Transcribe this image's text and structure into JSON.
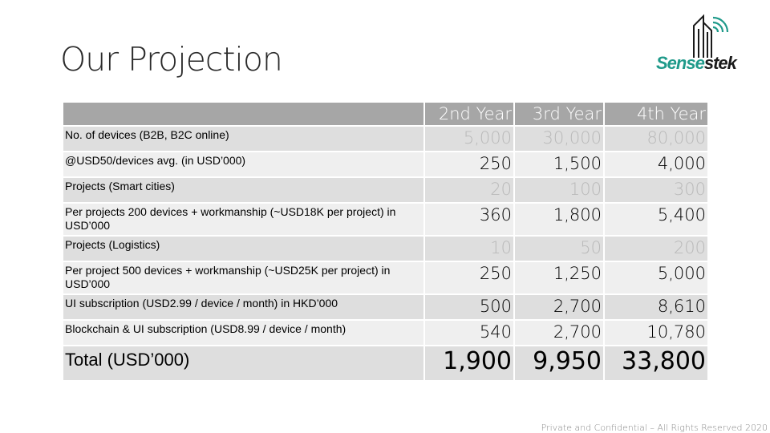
{
  "title": "Our Projection",
  "logo": {
    "part1": "Sense",
    "part2": "stek"
  },
  "table": {
    "headers": [
      "",
      "2nd Year",
      "3rd Year",
      "4th Year"
    ],
    "rows": [
      {
        "label": "No. of devices (B2B, B2C online)",
        "values": [
          "5,000",
          "30,000",
          "80,000"
        ]
      },
      {
        "label": "@USD50/devices avg. (in USD’000)",
        "values": [
          "250",
          "1,500",
          "4,000"
        ]
      },
      {
        "label": "Projects (Smart cities)",
        "values": [
          "20",
          "100",
          "300"
        ]
      },
      {
        "label": "Per projects 200 devices + workmanship (~USD18K per project) in USD’000",
        "values": [
          "360",
          "1,800",
          "5,400"
        ]
      },
      {
        "label": "Projects (Logistics)",
        "values": [
          "10",
          "50",
          "200"
        ]
      },
      {
        "label": "Per project 500 devices + workmanship (~USD25K per project) in USD’000",
        "values": [
          "250",
          "1,250",
          "5,000"
        ]
      },
      {
        "label": "UI subscription (USD2.99 / device / month) in HKD’000",
        "values": [
          "500",
          "2,700",
          "8,610"
        ]
      },
      {
        "label": "Blockchain & UI subscription (USD8.99 / device / month)",
        "values": [
          "540",
          "2,700",
          "10,780"
        ]
      }
    ],
    "total": {
      "label": "Total (USD’000)",
      "values": [
        "1,900",
        "9,950",
        "33,800"
      ]
    }
  },
  "footer": "Private and Confidential – All Rights Reserved 2020"
}
